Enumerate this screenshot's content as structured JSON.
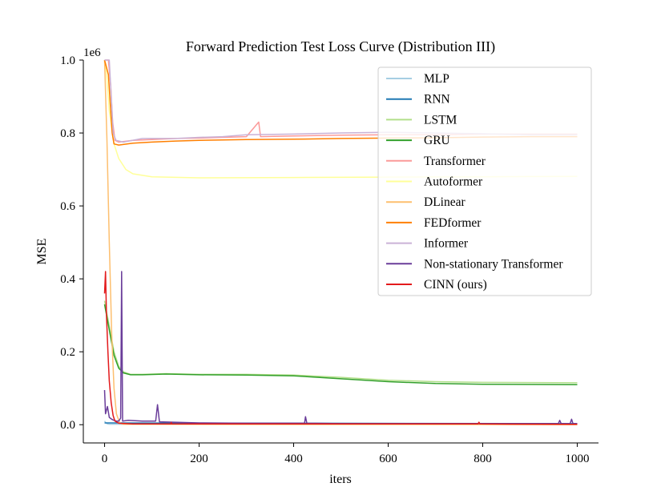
{
  "chart_data": {
    "type": "line",
    "title": "Forward Prediction Test Loss Curve (Distribution III)",
    "xlabel": "iters",
    "ylabel": "MSE",
    "y_scale_label": "1e6",
    "xlim": [
      -45,
      1045
    ],
    "ylim": [
      -0.05,
      1.0
    ],
    "x_ticks": [
      0,
      200,
      400,
      600,
      800,
      1000
    ],
    "x_tick_labels": [
      "0",
      "200",
      "400",
      "600",
      "800",
      "1000"
    ],
    "y_ticks": [
      0.0,
      0.2,
      0.4,
      0.6,
      0.8,
      1.0
    ],
    "y_tick_labels": [
      "0.0",
      "0.2",
      "0.4",
      "0.6",
      "0.8",
      "1.0"
    ],
    "legend_position": "top-right",
    "grid": false,
    "series": [
      {
        "name": "MLP",
        "color": "#a6cee3",
        "points": [
          [
            0,
            0.01
          ],
          [
            3,
            0.005
          ],
          [
            6,
            0.002
          ],
          [
            10,
            0.0015
          ],
          [
            1000,
            0.0015
          ]
        ]
      },
      {
        "name": "RNN",
        "color": "#1f78b4",
        "points": [
          [
            0,
            0.005
          ],
          [
            1000,
            0.003
          ]
        ]
      },
      {
        "name": "LSTM",
        "color": "#b2df8a",
        "points": [
          [
            0,
            0.34
          ],
          [
            10,
            0.27
          ],
          [
            20,
            0.2
          ],
          [
            30,
            0.16
          ],
          [
            40,
            0.145
          ],
          [
            55,
            0.138
          ],
          [
            80,
            0.138
          ],
          [
            130,
            0.14
          ],
          [
            200,
            0.138
          ],
          [
            300,
            0.138
          ],
          [
            400,
            0.136
          ],
          [
            500,
            0.13
          ],
          [
            600,
            0.122
          ],
          [
            700,
            0.118
          ],
          [
            800,
            0.116
          ],
          [
            1000,
            0.115
          ]
        ]
      },
      {
        "name": "GRU",
        "color": "#33a02c",
        "points": [
          [
            0,
            0.33
          ],
          [
            10,
            0.26
          ],
          [
            20,
            0.19
          ],
          [
            30,
            0.155
          ],
          [
            40,
            0.142
          ],
          [
            55,
            0.137
          ],
          [
            80,
            0.137
          ],
          [
            130,
            0.139
          ],
          [
            200,
            0.137
          ],
          [
            300,
            0.136
          ],
          [
            400,
            0.134
          ],
          [
            500,
            0.126
          ],
          [
            600,
            0.118
          ],
          [
            700,
            0.113
          ],
          [
            800,
            0.111
          ],
          [
            1000,
            0.11
          ]
        ]
      },
      {
        "name": "Transformer",
        "color": "#fb9a99",
        "points": [
          [
            0,
            1.0
          ],
          [
            8,
            1.0
          ],
          [
            13,
            0.93
          ],
          [
            17,
            0.83
          ],
          [
            22,
            0.78
          ],
          [
            30,
            0.775
          ],
          [
            60,
            0.78
          ],
          [
            100,
            0.782
          ],
          [
            150,
            0.785
          ],
          [
            200,
            0.786
          ],
          [
            300,
            0.79
          ],
          [
            326,
            0.83
          ],
          [
            330,
            0.79
          ],
          [
            400,
            0.792
          ],
          [
            500,
            0.794
          ],
          [
            600,
            0.795
          ],
          [
            700,
            0.795
          ],
          [
            800,
            0.797
          ],
          [
            1000,
            0.797
          ]
        ]
      },
      {
        "name": "Autoformer",
        "color": "#ffff99",
        "points": [
          [
            0,
            1.0
          ],
          [
            5,
            0.95
          ],
          [
            10,
            0.86
          ],
          [
            20,
            0.77
          ],
          [
            30,
            0.73
          ],
          [
            45,
            0.7
          ],
          [
            60,
            0.688
          ],
          [
            100,
            0.68
          ],
          [
            200,
            0.677
          ],
          [
            400,
            0.678
          ],
          [
            600,
            0.679
          ],
          [
            800,
            0.68
          ],
          [
            1000,
            0.681
          ]
        ]
      },
      {
        "name": "DLinear",
        "color": "#fdbf6f",
        "points": [
          [
            0,
            1.0
          ],
          [
            5,
            0.78
          ],
          [
            10,
            0.5
          ],
          [
            15,
            0.25
          ],
          [
            20,
            0.1
          ],
          [
            25,
            0.03
          ],
          [
            32,
            0.005
          ],
          [
            40,
            0.001
          ],
          [
            1000,
            0.0
          ]
        ]
      },
      {
        "name": "FEDformer",
        "color": "#ff7f00",
        "points": [
          [
            0,
            1.0
          ],
          [
            8,
            0.96
          ],
          [
            12,
            0.88
          ],
          [
            16,
            0.8
          ],
          [
            20,
            0.77
          ],
          [
            30,
            0.767
          ],
          [
            60,
            0.772
          ],
          [
            100,
            0.775
          ],
          [
            150,
            0.778
          ],
          [
            200,
            0.78
          ],
          [
            300,
            0.782
          ],
          [
            400,
            0.783
          ],
          [
            500,
            0.785
          ],
          [
            600,
            0.786
          ],
          [
            700,
            0.787
          ],
          [
            800,
            0.789
          ],
          [
            900,
            0.79
          ],
          [
            1000,
            0.79
          ]
        ]
      },
      {
        "name": "Informer",
        "color": "#cab2d6",
        "points": [
          [
            0,
            1.0
          ],
          [
            10,
            1.0
          ],
          [
            14,
            0.9
          ],
          [
            18,
            0.8
          ],
          [
            24,
            0.78
          ],
          [
            40,
            0.775
          ],
          [
            80,
            0.785
          ],
          [
            150,
            0.785
          ],
          [
            200,
            0.788
          ],
          [
            250,
            0.79
          ],
          [
            300,
            0.795
          ],
          [
            400,
            0.797
          ],
          [
            500,
            0.8
          ],
          [
            600,
            0.802
          ],
          [
            700,
            0.8
          ],
          [
            800,
            0.798
          ],
          [
            900,
            0.795
          ],
          [
            1000,
            0.795
          ]
        ]
      },
      {
        "name": "Non-stationary Transformer",
        "color": "#6a3d9a",
        "points": [
          [
            0,
            0.095
          ],
          [
            2,
            0.03
          ],
          [
            6,
            0.05
          ],
          [
            10,
            0.02
          ],
          [
            15,
            0.015
          ],
          [
            20,
            0.012
          ],
          [
            25,
            0.01
          ],
          [
            30,
            0.01
          ],
          [
            34,
            0.018
          ],
          [
            36,
            0.42
          ],
          [
            38,
            0.01
          ],
          [
            50,
            0.012
          ],
          [
            80,
            0.01
          ],
          [
            108,
            0.01
          ],
          [
            112,
            0.055
          ],
          [
            116,
            0.008
          ],
          [
            200,
            0.005
          ],
          [
            300,
            0.004
          ],
          [
            423,
            0.004
          ],
          [
            425,
            0.022
          ],
          [
            428,
            0.004
          ],
          [
            500,
            0.003
          ],
          [
            600,
            0.003
          ],
          [
            800,
            0.003
          ],
          [
            960,
            0.003
          ],
          [
            963,
            0.012
          ],
          [
            966,
            0.003
          ],
          [
            985,
            0.003
          ],
          [
            988,
            0.015
          ],
          [
            991,
            0.003
          ],
          [
            1000,
            0.003
          ]
        ]
      },
      {
        "name": "CINN (ours)",
        "color": "#e31a1c",
        "points": [
          [
            0,
            0.36
          ],
          [
            2,
            0.42
          ],
          [
            4,
            0.3
          ],
          [
            7,
            0.2
          ],
          [
            10,
            0.12
          ],
          [
            14,
            0.06
          ],
          [
            18,
            0.025
          ],
          [
            22,
            0.01
          ],
          [
            30,
            0.004
          ],
          [
            60,
            0.002
          ],
          [
            140,
            0.002
          ],
          [
            141,
            0.006
          ],
          [
            142,
            0.002
          ],
          [
            790,
            0.002
          ],
          [
            792,
            0.007
          ],
          [
            794,
            0.002
          ],
          [
            1000,
            0.001
          ]
        ]
      }
    ]
  }
}
